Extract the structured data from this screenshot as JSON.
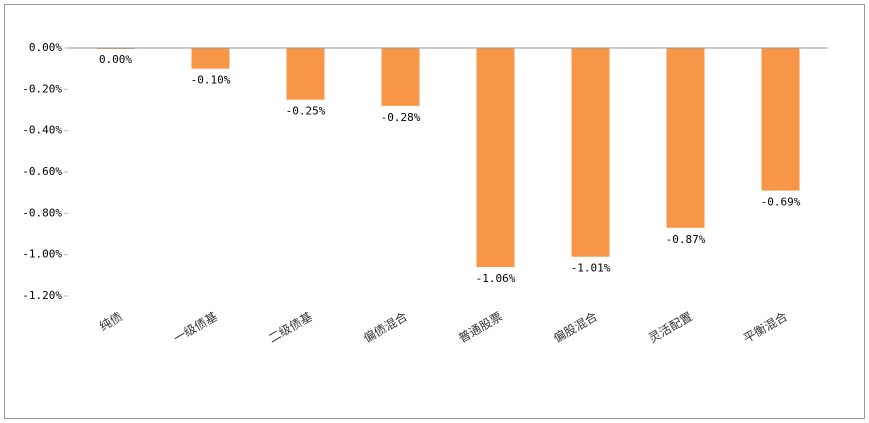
{
  "chart_data": {
    "type": "bar",
    "categories": [
      "纯债",
      "一级债基",
      "二级债基",
      "偏债混合",
      "普通股票",
      "偏股混合",
      "灵活配置",
      "平衡混合"
    ],
    "values": [
      0,
      -0.1,
      -0.25,
      -0.28,
      -1.06,
      -1.01,
      -0.87,
      -0.69
    ],
    "value_labels": [
      "0.00%",
      "-0.10%",
      "-0.25%",
      "-0.28%",
      "-1.06%",
      "-1.01%",
      "-0.87%",
      "-0.69%"
    ],
    "color": "#f79646",
    "ylim": [
      -1.2,
      0
    ],
    "yticks": [
      {
        "value": 0,
        "label": "0.00%"
      },
      {
        "value": -0.2,
        "label": "-0.20%"
      },
      {
        "value": -0.4,
        "label": "-0.40%"
      },
      {
        "value": -0.6,
        "label": "-0.60%"
      },
      {
        "value": -0.8,
        "label": "-0.80%"
      },
      {
        "value": -1.0,
        "label": "-1.00%"
      },
      {
        "value": -1.2,
        "label": "-1.20%"
      }
    ],
    "grid": false
  }
}
